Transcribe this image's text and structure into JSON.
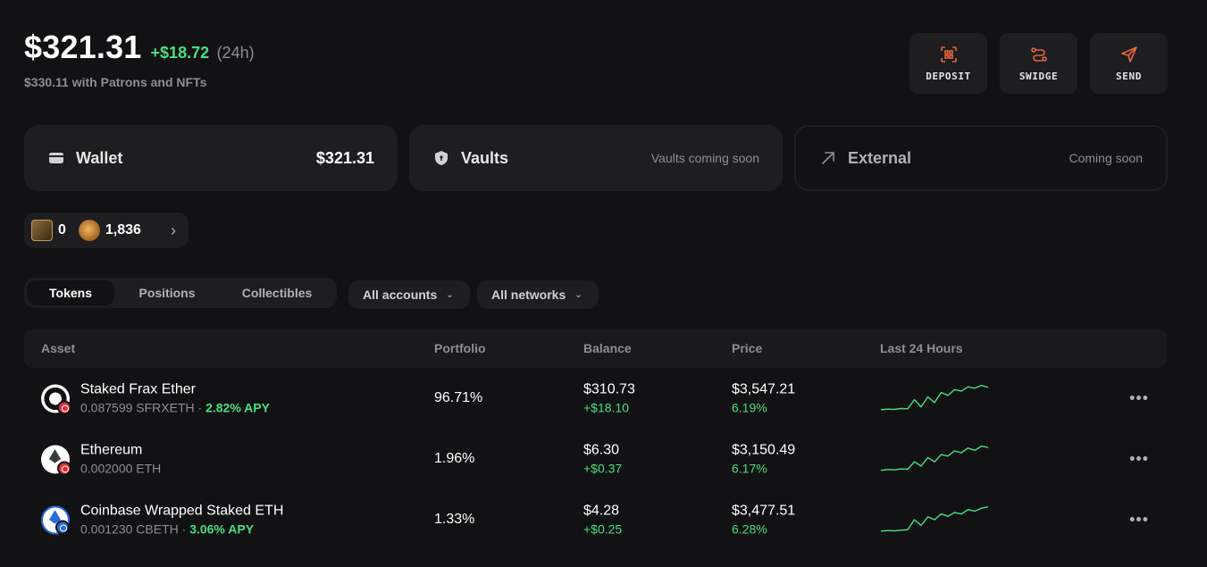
{
  "header": {
    "total": "$321.31",
    "delta": "+$18.72",
    "delta_period": "(24h)",
    "sub_total": "$330.11 with Patrons and NFTs"
  },
  "actions": [
    {
      "label": "DEPOSIT",
      "icon": "qr-scan-icon"
    },
    {
      "label": "SWIDGE",
      "icon": "swap-route-icon"
    },
    {
      "label": "SEND",
      "icon": "send-icon"
    }
  ],
  "cards": {
    "wallet": {
      "title": "Wallet",
      "value": "$321.31",
      "icon": "wallet-icon"
    },
    "vaults": {
      "title": "Vaults",
      "value": "Vaults coming soon",
      "icon": "shield-icon"
    },
    "external": {
      "title": "External",
      "value": "Coming soon",
      "icon": "arrow-up-right-icon"
    }
  },
  "points": {
    "a": "0",
    "b": "1,836"
  },
  "tabs": [
    "Tokens",
    "Positions",
    "Collectibles"
  ],
  "filters": {
    "accounts": "All accounts",
    "networks": "All networks"
  },
  "table": {
    "headers": {
      "asset": "Asset",
      "portfolio": "Portfolio",
      "balance": "Balance",
      "price": "Price",
      "chart": "Last 24 Hours"
    },
    "rows": [
      {
        "name": "Staked Frax Ether",
        "amount": "0.087599 SFRXETH",
        "sep": " · ",
        "apy": "2.82% APY",
        "portfolio": "96.71%",
        "balance": "$310.73",
        "balance_change": "+$18.10",
        "price": "$3,547.21",
        "price_change": "6.19%",
        "spark": [
          0.1,
          0.12,
          0.11,
          0.14,
          0.13,
          0.45,
          0.2,
          0.55,
          0.35,
          0.7,
          0.6,
          0.8,
          0.75,
          0.9,
          0.85,
          0.95,
          0.88
        ]
      },
      {
        "name": "Ethereum",
        "amount": "0.002000 ETH",
        "sep": "",
        "apy": "",
        "portfolio": "1.96%",
        "balance": "$6.30",
        "balance_change": "+$0.37",
        "price": "$3,150.49",
        "price_change": "6.17%",
        "spark": [
          0.1,
          0.13,
          0.12,
          0.15,
          0.14,
          0.4,
          0.25,
          0.55,
          0.4,
          0.65,
          0.6,
          0.78,
          0.72,
          0.88,
          0.8,
          0.95,
          0.9
        ]
      },
      {
        "name": "Coinbase Wrapped Staked ETH",
        "amount": "0.001230 CBETH",
        "sep": " · ",
        "apy": "3.06% APY",
        "portfolio": "1.33%",
        "balance": "$4.28",
        "balance_change": "+$0.25",
        "price": "$3,477.51",
        "price_change": "6.28%",
        "spark": [
          0.1,
          0.12,
          0.11,
          0.13,
          0.15,
          0.5,
          0.3,
          0.6,
          0.5,
          0.7,
          0.62,
          0.75,
          0.7,
          0.85,
          0.8,
          0.9,
          0.95
        ]
      }
    ]
  },
  "colors": {
    "accent": "#e8643c",
    "positive": "#4ade80",
    "background": "#121214",
    "surface": "#1e1e21"
  }
}
